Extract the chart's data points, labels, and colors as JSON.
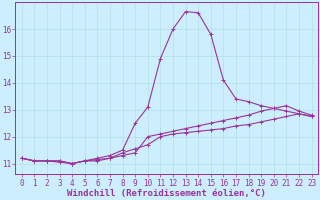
{
  "xlabel": "Windchill (Refroidissement éolien,°C)",
  "bg_color": "#cceeff",
  "line_color": "#993399",
  "grid_color": "#aadddd",
  "xlim": [
    -0.5,
    23.5
  ],
  "ylim": [
    10.6,
    17.0
  ],
  "xticks": [
    0,
    1,
    2,
    3,
    4,
    5,
    6,
    7,
    8,
    9,
    10,
    11,
    12,
    13,
    14,
    15,
    16,
    17,
    18,
    19,
    20,
    21,
    22,
    23
  ],
  "yticks": [
    11,
    12,
    13,
    14,
    15,
    16
  ],
  "line2_x": [
    0,
    1,
    2,
    3,
    4,
    5,
    6,
    7,
    8,
    9,
    10,
    11,
    12,
    13,
    14,
    15,
    16,
    17,
    18,
    19,
    20,
    21,
    22,
    23
  ],
  "line2_y": [
    11.2,
    11.1,
    11.1,
    11.1,
    11.0,
    11.1,
    11.2,
    11.3,
    11.5,
    12.5,
    13.1,
    14.9,
    16.0,
    16.65,
    16.6,
    15.8,
    14.1,
    13.4,
    13.3,
    13.15,
    13.05,
    12.95,
    12.85,
    12.75
  ],
  "line3_x": [
    0,
    1,
    2,
    3,
    4,
    5,
    6,
    7,
    8,
    9,
    10,
    11,
    12,
    13,
    14,
    15,
    16,
    17,
    18,
    19,
    20,
    21,
    22,
    23
  ],
  "line3_y": [
    11.2,
    11.1,
    11.1,
    11.05,
    11.0,
    11.1,
    11.15,
    11.2,
    11.4,
    11.55,
    11.7,
    12.0,
    12.1,
    12.15,
    12.2,
    12.25,
    12.3,
    12.4,
    12.45,
    12.55,
    12.65,
    12.75,
    12.85,
    12.75
  ],
  "line1_x": [
    0,
    1,
    2,
    3,
    4,
    5,
    6,
    7,
    8,
    9,
    10,
    11,
    12,
    13,
    14,
    15,
    16,
    17,
    18,
    19,
    20,
    21,
    22,
    23
  ],
  "line1_y": [
    11.2,
    11.1,
    11.1,
    11.1,
    11.0,
    11.1,
    11.1,
    11.2,
    11.3,
    11.4,
    12.0,
    12.1,
    12.2,
    12.3,
    12.4,
    12.5,
    12.6,
    12.7,
    12.8,
    12.95,
    13.05,
    13.15,
    12.95,
    12.8
  ],
  "tick_fontsize": 5.5,
  "xlabel_fontsize": 6.5
}
